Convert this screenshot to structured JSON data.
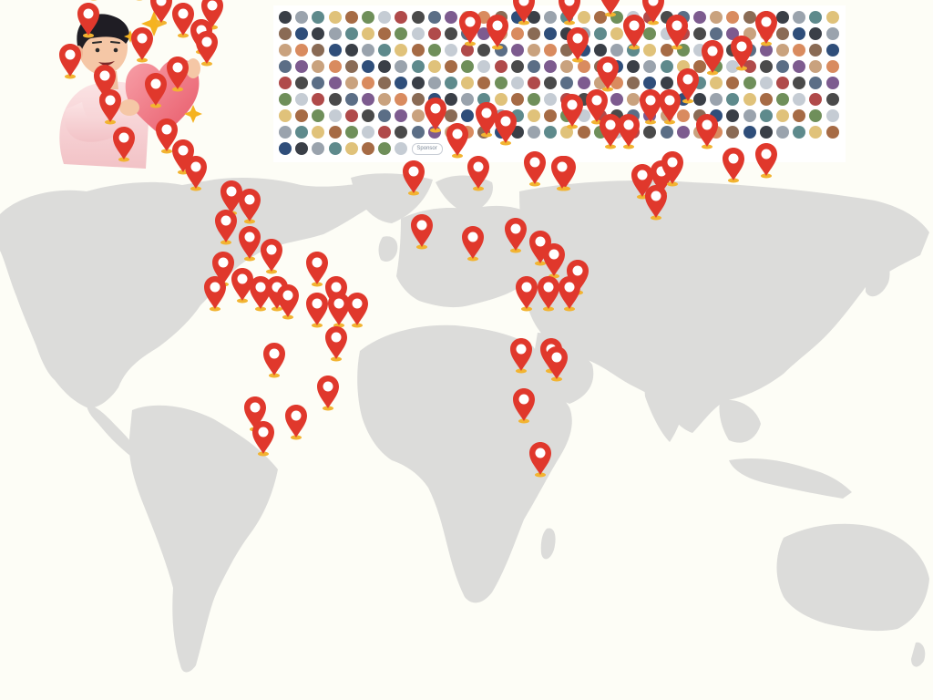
{
  "colors": {
    "background": "#fdfdf6",
    "land": "#dcdcda",
    "pin_red": "#e0382c",
    "pin_center": "#ffffff",
    "pin_base": "#f2b431",
    "heart": "#f07a86",
    "shirt": "#f7d3d6",
    "sparkle": "#f5b321"
  },
  "icons": {
    "illustration": "person-hugging-heart-icon",
    "pin": "map-pin-icon"
  },
  "avatar_grid": {
    "rows": 9,
    "cols": 34,
    "sponsor_label": "Sponsor"
  },
  "pins": [
    {
      "lon": -93,
      "lat": 71
    },
    {
      "lon": -125,
      "lat": 64
    },
    {
      "lon": -118,
      "lat": 64
    },
    {
      "lon": -102,
      "lat": 64
    },
    {
      "lon": -130,
      "lat": 57
    },
    {
      "lon": -113,
      "lat": 57
    },
    {
      "lon": -96,
      "lat": 58
    },
    {
      "lon": -105,
      "lat": 51
    },
    {
      "lon": -86,
      "lat": 50
    },
    {
      "lon": -132,
      "lat": 48
    },
    {
      "lon": -97,
      "lat": 48
    },
    {
      "lon": -90,
      "lat": 44
    },
    {
      "lon": -112,
      "lat": 42
    },
    {
      "lon": -88,
      "lat": 41
    },
    {
      "lon": -139,
      "lat": 38
    },
    {
      "lon": -99,
      "lat": 35
    },
    {
      "lon": -126,
      "lat": 33
    },
    {
      "lon": -107,
      "lat": 31
    },
    {
      "lon": -124,
      "lat": 27
    },
    {
      "lon": -119,
      "lat": 18
    },
    {
      "lon": -103,
      "lat": 20
    },
    {
      "lon": -97,
      "lat": 15
    },
    {
      "lon": -92,
      "lat": 11
    },
    {
      "lon": -79,
      "lat": 5
    },
    {
      "lon": -72,
      "lat": 3
    },
    {
      "lon": -81,
      "lat": -2
    },
    {
      "lon": -72,
      "lat": -6
    },
    {
      "lon": -64,
      "lat": -9
    },
    {
      "lon": -82,
      "lat": -12
    },
    {
      "lon": -47,
      "lat": -12
    },
    {
      "lon": -75,
      "lat": -16
    },
    {
      "lon": -85,
      "lat": -18
    },
    {
      "lon": -68,
      "lat": -18
    },
    {
      "lon": -62,
      "lat": -18
    },
    {
      "lon": -58,
      "lat": -20
    },
    {
      "lon": -40,
      "lat": -18
    },
    {
      "lon": -47,
      "lat": -22
    },
    {
      "lon": -39,
      "lat": -22
    },
    {
      "lon": -32,
      "lat": -22
    },
    {
      "lon": -40,
      "lat": -30
    },
    {
      "lon": -63,
      "lat": -34
    },
    {
      "lon": -43,
      "lat": -42
    },
    {
      "lon": -70,
      "lat": -47
    },
    {
      "lon": -55,
      "lat": -49
    },
    {
      "lon": -67,
      "lat": -53
    },
    {
      "lon": 29,
      "lat": 60
    },
    {
      "lon": 30,
      "lat": 51
    },
    {
      "lon": 48,
      "lat": 62
    },
    {
      "lon": 59,
      "lat": 62
    },
    {
      "lon": 69,
      "lat": 63
    },
    {
      "lon": 77,
      "lat": 64
    },
    {
      "lon": 92,
      "lat": 64
    },
    {
      "lon": 104,
      "lat": 65
    },
    {
      "lon": 118,
      "lat": 64
    },
    {
      "lon": 47,
      "lat": 51
    },
    {
      "lon": 62,
      "lat": 53
    },
    {
      "lon": 78,
      "lat": 51
    },
    {
      "lon": 71,
      "lat": 45
    },
    {
      "lon": 87,
      "lat": 45
    },
    {
      "lon": 120,
      "lat": 46
    },
    {
      "lon": 50,
      "lat": 42
    },
    {
      "lon": 61,
      "lat": 35
    },
    {
      "lon": 100,
      "lat": 39
    },
    {
      "lon": 111,
      "lat": 40
    },
    {
      "lon": 91,
      "lat": 32
    },
    {
      "lon": 84,
      "lat": 27
    },
    {
      "lon": 77,
      "lat": 27
    },
    {
      "lon": 48,
      "lat": 26
    },
    {
      "lon": 57,
      "lat": 27
    },
    {
      "lon": 62,
      "lat": 21
    },
    {
      "lon": 69,
      "lat": 21
    },
    {
      "lon": 98,
      "lat": 21
    },
    {
      "lon": 108,
      "lat": 13
    },
    {
      "lon": 120,
      "lat": 14
    },
    {
      "lon": 45,
      "lat": 11
    },
    {
      "lon": 74,
      "lat": 9
    },
    {
      "lon": 81,
      "lat": 10
    },
    {
      "lon": 85,
      "lat": 12
    },
    {
      "lon": 79,
      "lat": 4
    },
    {
      "lon": -3,
      "lat": 25
    },
    {
      "lon": 5,
      "lat": 19
    },
    {
      "lon": 16,
      "lat": 24
    },
    {
      "lon": 23,
      "lat": 22
    },
    {
      "lon": -11,
      "lat": 10
    },
    {
      "lon": 13,
      "lat": 11
    },
    {
      "lon": 34,
      "lat": 12
    },
    {
      "lon": 44,
      "lat": 11
    },
    {
      "lon": -8,
      "lat": -3
    },
    {
      "lon": 11,
      "lat": -6
    },
    {
      "lon": 27,
      "lat": -4
    },
    {
      "lon": 36,
      "lat": -7
    },
    {
      "lon": 41,
      "lat": -10
    },
    {
      "lon": 50,
      "lat": -14
    },
    {
      "lon": 31,
      "lat": -18
    },
    {
      "lon": 39,
      "lat": -18
    },
    {
      "lon": 47,
      "lat": -18
    },
    {
      "lon": 29,
      "lat": -33
    },
    {
      "lon": 40,
      "lat": -33
    },
    {
      "lon": 42,
      "lat": -35
    },
    {
      "lon": 30,
      "lat": -45
    },
    {
      "lon": 36,
      "lat": -58
    },
    {
      "lon": 10,
      "lat": 46
    },
    {
      "lon": 20,
      "lat": 45
    }
  ]
}
